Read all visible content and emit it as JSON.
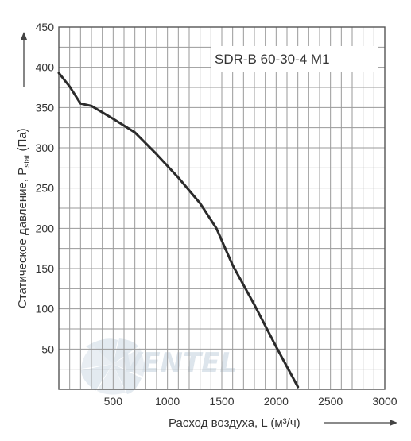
{
  "chart_data": {
    "type": "line",
    "title": "",
    "model_label": "SDR-B 60-30-4 M1",
    "xlabel": "Расход воздуха, L (м³/ч)",
    "ylabel_main": "Статическое давление, P",
    "ylabel_sub": "stat",
    "ylabel_unit": " (Па)",
    "xlim": [
      0,
      3000
    ],
    "ylim": [
      0,
      450
    ],
    "x_ticks": [
      500,
      1000,
      1500,
      2000,
      2500,
      3000
    ],
    "y_ticks": [
      50,
      100,
      150,
      200,
      250,
      300,
      350,
      400,
      450
    ],
    "x_grid_step": 100,
    "y_grid_step": 25,
    "grid": true,
    "series": [
      {
        "x": [
          0,
          100,
          200,
          300,
          500,
          700,
          900,
          1100,
          1300,
          1450,
          1600,
          1800,
          2000,
          2200
        ],
        "values": [
          393,
          376,
          355,
          352,
          336,
          319,
          292,
          263,
          231,
          200,
          154,
          105,
          53,
          3
        ]
      }
    ],
    "line_color": "#2b2b2b"
  },
  "watermark": {
    "text": "VENTEL"
  }
}
